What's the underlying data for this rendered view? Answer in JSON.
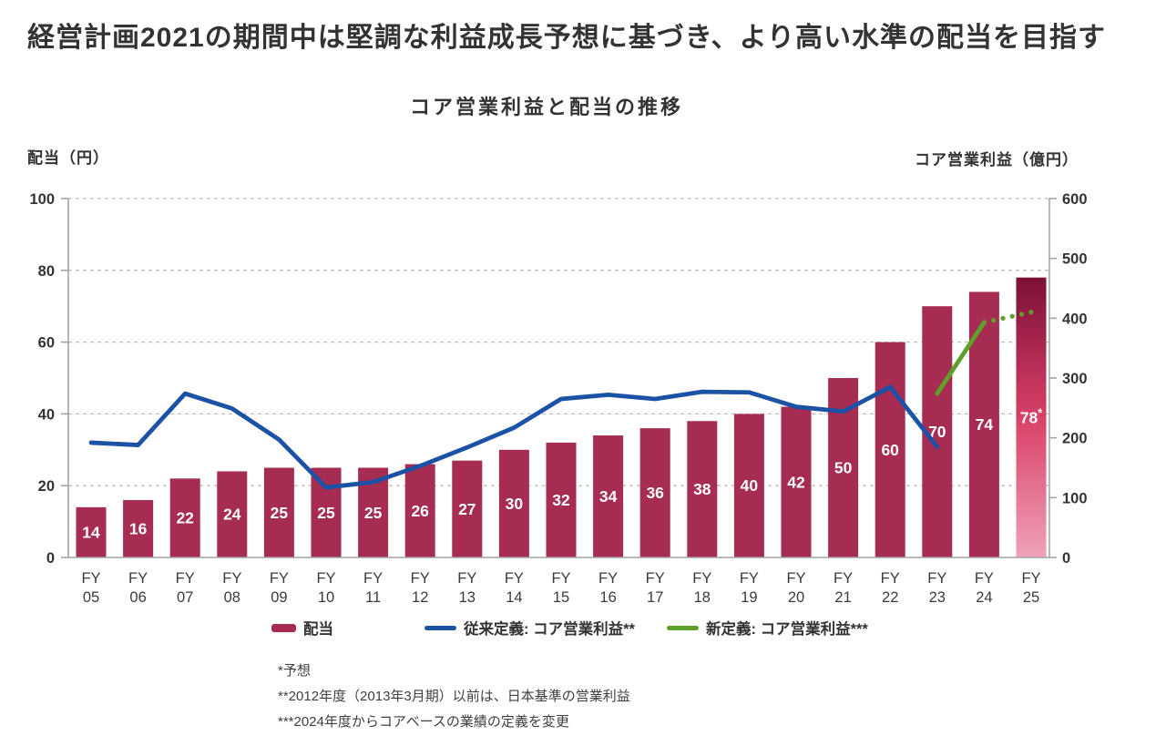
{
  "header": {
    "title": "経営計画2021の期間中は堅調な利益成長予想に基づき、より高い水準の配当を目指す",
    "subtitle": "コア営業利益と配当の推移"
  },
  "axes": {
    "left_title": "配当（円）",
    "right_title": "コア営業利益（億円）",
    "left_ticks": [
      0,
      20,
      40,
      60,
      80,
      100
    ],
    "right_ticks": [
      0,
      100,
      200,
      300,
      400,
      500,
      600
    ],
    "left_range": [
      0,
      100
    ],
    "right_range": [
      0,
      600
    ]
  },
  "chart_data": {
    "type": "bar+line",
    "category_prefix": "FY",
    "categories": [
      "05",
      "06",
      "07",
      "08",
      "09",
      "10",
      "11",
      "12",
      "13",
      "14",
      "15",
      "16",
      "17",
      "18",
      "19",
      "20",
      "21",
      "22",
      "23",
      "24",
      "25"
    ],
    "series": [
      {
        "name": "配当",
        "type": "bar",
        "axis": "left",
        "values": [
          14,
          16,
          22,
          24,
          25,
          25,
          25,
          26,
          27,
          30,
          32,
          34,
          36,
          38,
          40,
          42,
          50,
          60,
          70,
          74,
          78
        ],
        "labels": [
          "14",
          "16",
          "22",
          "24",
          "25",
          "25",
          "25",
          "26",
          "27",
          "30",
          "32",
          "34",
          "36",
          "38",
          "40",
          "42",
          "50",
          "60",
          "70",
          "74",
          "78*"
        ],
        "forecast_index": 20
      },
      {
        "name": "従来定義: コア営業利益**",
        "type": "line",
        "axis": "right",
        "color_key": "blue_line",
        "values": [
          192,
          188,
          274,
          249,
          197,
          117,
          126,
          153,
          184,
          217,
          265,
          272,
          265,
          277,
          276,
          252,
          244,
          285,
          185,
          null,
          null
        ]
      },
      {
        "name": "新定義: コア営業利益***",
        "type": "line",
        "axis": "right",
        "color_key": "green_line",
        "dotted_from_index": 19,
        "values": [
          null,
          null,
          null,
          null,
          null,
          null,
          null,
          null,
          null,
          null,
          null,
          null,
          null,
          null,
          null,
          null,
          null,
          null,
          274,
          393,
          410
        ]
      }
    ]
  },
  "legend": {
    "items": [
      {
        "label": "配当",
        "swatch": "bar"
      },
      {
        "label": "従来定義: コア営業利益**",
        "swatch": "line-blue"
      },
      {
        "label": "新定義: コア営業利益***",
        "swatch": "line-green"
      }
    ]
  },
  "footnotes": [
    "*予想",
    "**2012年度（2013年3月期）以前は、日本基準の営業利益",
    "***2024年度からコアベースの業績の定義を変更"
  ],
  "colors": {
    "bar": "#A62C52",
    "bar_gradient_top": "#7C0F37",
    "bar_gradient_mid": "#D84067",
    "bar_gradient_bottom": "#F0A2B8",
    "blue_line": "#1B52A5",
    "green_line": "#5FA02B",
    "grid": "#bdbdbd",
    "axis": "#a3a3a3",
    "tick_text": "#333333",
    "x_label_text": "#3b3b3b",
    "bar_label_text": "#ffffff"
  }
}
